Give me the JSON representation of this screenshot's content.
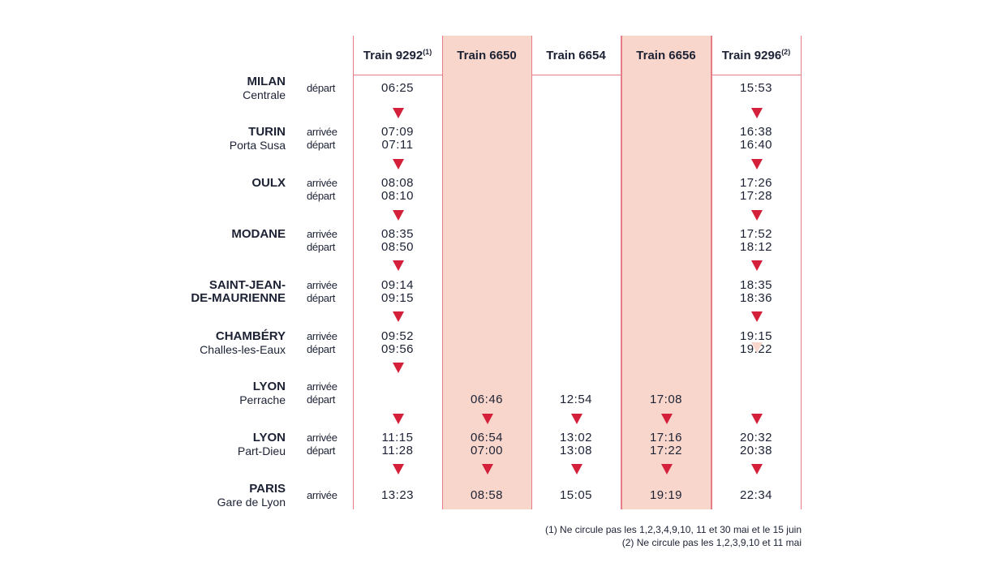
{
  "colors": {
    "accent": "#d4203b",
    "highlight": "#f9d6cc",
    "rule": "#e57c86",
    "text": "#1c2234"
  },
  "trains": [
    {
      "label": "Train 9292",
      "note": "(1)",
      "highlight": false
    },
    {
      "label": "Train 6650",
      "note": "",
      "highlight": true
    },
    {
      "label": "Train 6654",
      "note": "",
      "highlight": false
    },
    {
      "label": "Train 6656",
      "note": "",
      "highlight": true
    },
    {
      "label": "Train 9296",
      "note": "(2)",
      "highlight": false
    }
  ],
  "stations": [
    {
      "name": "MILAN",
      "sub": "Centrale",
      "labels": [
        "départ"
      ],
      "times": [
        [
          "06:25"
        ],
        [],
        [],
        [],
        [
          "15:53"
        ]
      ]
    },
    {
      "name": "TURIN",
      "sub": "Porta Susa",
      "labels": [
        "arrivée",
        "départ"
      ],
      "times": [
        [
          "07:09",
          "07:11"
        ],
        [],
        [],
        [],
        [
          "16:38",
          "16:40"
        ]
      ]
    },
    {
      "name": "OULX",
      "sub": "",
      "labels": [
        "arrivée",
        "départ"
      ],
      "times": [
        [
          "08:08",
          "08:10"
        ],
        [],
        [],
        [],
        [
          "17:26",
          "17:28"
        ]
      ]
    },
    {
      "name": "MODANE",
      "sub": "",
      "labels": [
        "arrivée",
        "départ"
      ],
      "times": [
        [
          "08:35",
          "08:50"
        ],
        [],
        [],
        [],
        [
          "17:52",
          "18:12"
        ]
      ]
    },
    {
      "name": "SAINT-JEAN-",
      "sub": "DE-MAURIENNE",
      "sub_bold": true,
      "labels": [
        "arrivée",
        "départ"
      ],
      "times": [
        [
          "09:14",
          "09:15"
        ],
        [],
        [],
        [],
        [
          "18:35",
          "18:36"
        ]
      ]
    },
    {
      "name": "CHAMBÉRY",
      "sub": "Challes-les-Eaux",
      "labels": [
        "arrivée",
        "départ"
      ],
      "times": [
        [
          "09:52",
          "09:56"
        ],
        [],
        [],
        [],
        [
          "19:15",
          "19:22"
        ]
      ]
    },
    {
      "name": "LYON",
      "sub": "Perrache",
      "labels": [
        "arrivée",
        "départ"
      ],
      "times": [
        [],
        [
          "",
          "06:46"
        ],
        [
          "",
          "12:54"
        ],
        [
          "",
          "17:08"
        ],
        []
      ]
    },
    {
      "name": "LYON",
      "sub": "Part-Dieu",
      "labels": [
        "arrivée",
        "départ"
      ],
      "times": [
        [
          "11:15",
          "11:28"
        ],
        [
          "06:54",
          "07:00"
        ],
        [
          "13:02",
          "13:08"
        ],
        [
          "17:16",
          "17:22"
        ],
        [
          "20:32",
          "20:38"
        ]
      ]
    },
    {
      "name": "PARIS",
      "sub": "Gare de Lyon",
      "labels": [
        "arrivée"
      ],
      "times": [
        [
          "13:23"
        ],
        [
          "08:58"
        ],
        [
          "15:05"
        ],
        [
          "19:19"
        ],
        [
          "22:34"
        ]
      ]
    }
  ],
  "arrows": [
    [
      true,
      false,
      false,
      false,
      true
    ],
    [
      true,
      false,
      false,
      false,
      true
    ],
    [
      true,
      false,
      false,
      false,
      true
    ],
    [
      true,
      false,
      false,
      false,
      true
    ],
    [
      true,
      false,
      false,
      false,
      true
    ],
    [
      true,
      false,
      false,
      false,
      true
    ],
    [
      true,
      true,
      true,
      true,
      true
    ],
    [
      true,
      true,
      true,
      true,
      true
    ]
  ],
  "faded_arrows": [
    [
      5,
      4
    ]
  ],
  "footnotes": [
    "(1) Ne circule pas les 1,2,3,4,9,10, 11 et 30 mai et le 15 juin",
    "(2) Ne circule pas les 1,2,3,9,10 et 11 mai"
  ]
}
